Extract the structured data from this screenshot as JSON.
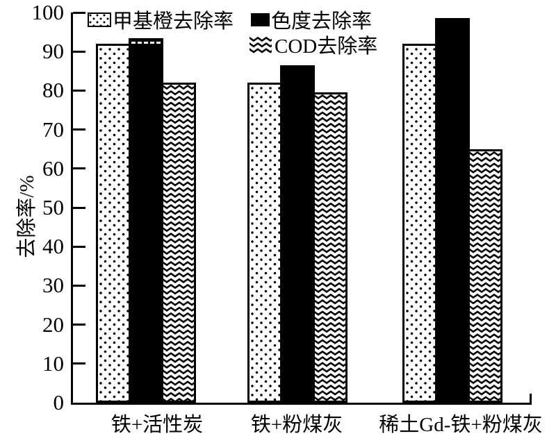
{
  "chart_data": {
    "type": "bar",
    "title": "",
    "categories": [
      "铁+活性炭",
      "铁+粉煤灰",
      "稀土Gd-铁+粉煤灰"
    ],
    "series": [
      {
        "name": "甲基橙去除率",
        "pattern": "dots",
        "values": [
          92,
          82,
          92
        ]
      },
      {
        "name": "色度去除率",
        "pattern": "solid",
        "values": [
          93.5,
          86.5,
          98.5
        ]
      },
      {
        "name": "COD去除率",
        "pattern": "zigzag",
        "values": [
          82,
          79.5,
          65
        ]
      }
    ],
    "xlabel": "",
    "ylabel": "去除率/%",
    "ylim": [
      0,
      100
    ],
    "yticks": [
      0,
      10,
      20,
      30,
      40,
      50,
      60,
      70,
      80,
      90,
      100
    ],
    "grid": false,
    "legend_position": "top-inside",
    "bar_outline": true,
    "colors": {
      "foreground": "#000000",
      "background": "#ffffff"
    },
    "detail": {
      "dashed_white_line_on_bar": {
        "category_index": 0,
        "series_index": 1
      }
    }
  }
}
